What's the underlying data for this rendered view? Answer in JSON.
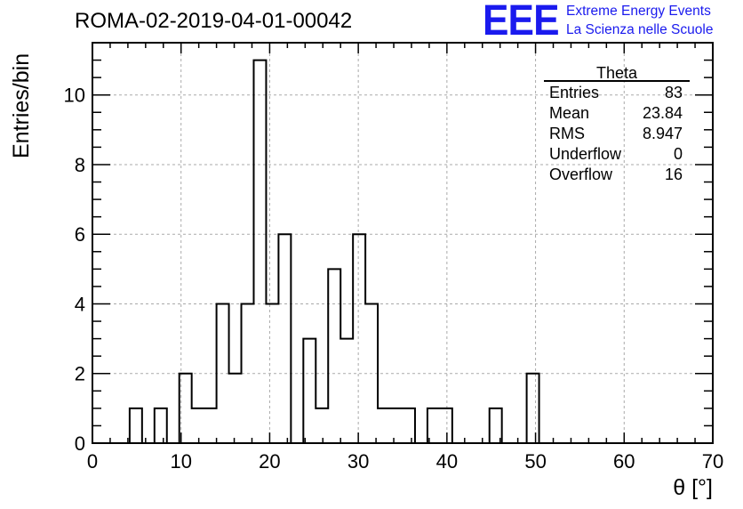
{
  "header": {
    "run_title": "ROMA-02-2019-04-01-00042",
    "logo_text": "EEE",
    "logo_line1": "Extreme Energy Events",
    "logo_line2": "La Scienza nelle Scuole"
  },
  "colors": {
    "logo_blue": "#1a1aee",
    "grid": "#aaaaaa",
    "line": "#000000"
  },
  "chart_data": {
    "type": "bar",
    "histogram_style": "step",
    "title": "",
    "xlabel": "θ [°]",
    "ylabel": "Entries/bin",
    "xlim": [
      0,
      70
    ],
    "ylim": [
      0,
      11.5
    ],
    "grid": true,
    "bin_width": 1.4,
    "bin_edges_start": 0,
    "values": [
      0,
      0,
      0,
      1,
      0,
      1,
      0,
      2,
      1,
      1,
      4,
      2,
      4,
      11,
      4,
      6,
      0,
      3,
      1,
      5,
      3,
      6,
      4,
      1,
      1,
      1,
      0,
      1,
      1,
      0,
      0,
      0,
      1,
      0,
      0,
      2,
      0,
      0,
      0,
      0,
      0,
      0,
      0,
      0,
      0,
      0,
      0,
      0,
      0,
      0
    ],
    "x_ticks": [
      "0",
      "10",
      "20",
      "30",
      "40",
      "50",
      "60",
      "70"
    ],
    "y_ticks": [
      "0",
      "2",
      "4",
      "6",
      "8",
      "10"
    ],
    "stats_box": {
      "title": "Theta",
      "position": "top-right",
      "rows": [
        {
          "label": "Entries",
          "value": "83"
        },
        {
          "label": "Mean",
          "value": "23.84"
        },
        {
          "label": "RMS",
          "value": "8.947"
        },
        {
          "label": "Underflow",
          "value": "0"
        },
        {
          "label": "Overflow",
          "value": "16"
        }
      ]
    }
  }
}
